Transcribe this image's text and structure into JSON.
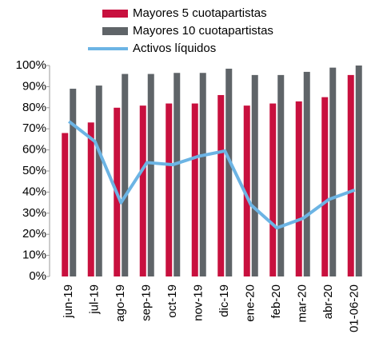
{
  "chart_data": {
    "type": "bar-line",
    "categories": [
      "jun-19",
      "jul-19",
      "ago-19",
      "sep-19",
      "oct-19",
      "nov-19",
      "dic-19",
      "ene-20",
      "feb-20",
      "mar-20",
      "abr-20",
      "01-06-20"
    ],
    "series": [
      {
        "name": "Mayores 5 cuotapartistas",
        "type": "bar",
        "color": "#c8103e",
        "values": [
          68,
          73,
          80,
          81,
          82,
          82,
          86,
          81,
          82,
          83,
          85,
          95.5
        ]
      },
      {
        "name": "Mayores 10 cuotapartistas",
        "type": "bar",
        "color": "#5f6468",
        "values": [
          89,
          90.5,
          96,
          96,
          96.5,
          96.5,
          98.5,
          95.5,
          95.5,
          97,
          99,
          100
        ]
      },
      {
        "name": "Activos líquidos",
        "type": "line",
        "color": "#6cb4e4",
        "values": [
          73.5,
          64,
          35,
          54,
          53,
          57,
          59.5,
          34,
          23,
          27.5,
          36.5,
          41
        ]
      }
    ],
    "ylim": [
      0,
      100
    ],
    "yticks": [
      {
        "value": 0,
        "label": "0%"
      },
      {
        "value": 10,
        "label": "10%"
      },
      {
        "value": 20,
        "label": "20%"
      },
      {
        "value": 30,
        "label": "30%"
      },
      {
        "value": 40,
        "label": "40%"
      },
      {
        "value": 50,
        "label": "50%"
      },
      {
        "value": 60,
        "label": "60%"
      },
      {
        "value": 70,
        "label": "70%"
      },
      {
        "value": 80,
        "label": "80%"
      },
      {
        "value": 90,
        "label": "90%"
      },
      {
        "value": 100,
        "label": "100%"
      }
    ],
    "grid": false,
    "legend": "top"
  }
}
